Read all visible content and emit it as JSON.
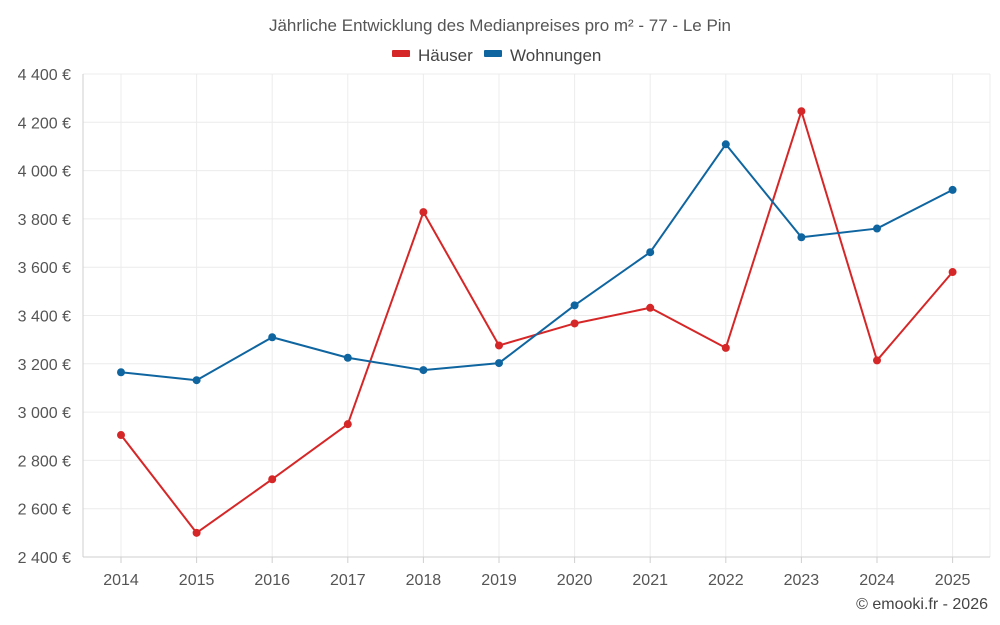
{
  "chart_data": {
    "type": "line",
    "title": "Jährliche Entwicklung des Medianpreises pro m² - 77 - Le Pin",
    "categories": [
      "2014",
      "2015",
      "2016",
      "2017",
      "2018",
      "2019",
      "2020",
      "2021",
      "2022",
      "2023",
      "2024",
      "2025"
    ],
    "series": [
      {
        "name": "Häuser",
        "color": "#d62728",
        "values": [
          2905,
          2500,
          2722,
          2950,
          3828,
          3276,
          3367,
          3432,
          3266,
          4246,
          3214,
          3580
        ]
      },
      {
        "name": "Wohnungen",
        "color": "#0f65a0",
        "values": [
          3165,
          3132,
          3310,
          3225,
          3174,
          3203,
          3442,
          3662,
          4109,
          3724,
          3760,
          3920
        ]
      }
    ],
    "ylim": [
      2400,
      4400
    ],
    "yticks": [
      "2 400 €",
      "2 600 €",
      "2 800 €",
      "3 000 €",
      "3 200 €",
      "3 400 €",
      "3 600 €",
      "3 800 €",
      "4 000 €",
      "4 200 €",
      "4 400 €"
    ],
    "ytick_values": [
      2400,
      2600,
      2800,
      3000,
      3200,
      3400,
      3600,
      3800,
      4000,
      4200,
      4400
    ],
    "legend_position": "top-center",
    "grid": true
  },
  "credit": "© emooki.fr - 2026"
}
